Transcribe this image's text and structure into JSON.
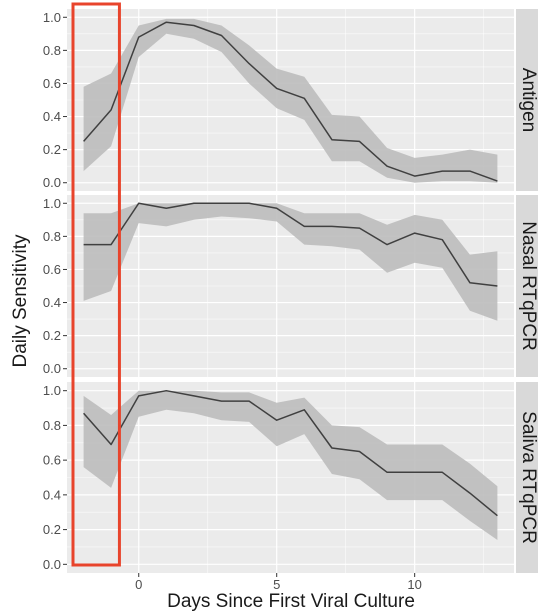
{
  "chart_data": {
    "type": "area",
    "xlabel": "Days Since First Viral Culture",
    "ylabel": "Daily Sensitivity",
    "x_ticks": [
      0,
      5,
      10
    ],
    "y_ticks": [
      "0.0",
      "0.2",
      "0.4",
      "0.6",
      "0.8",
      "1.0"
    ],
    "xlim": [
      -2.6,
      13.6
    ],
    "ylim": [
      -0.05,
      1.05
    ],
    "grid": true,
    "highlight": {
      "x_from": -2.6,
      "x_to": -0.7,
      "color": "#e8442c"
    },
    "colors": {
      "panel_bg": "#ebebeb",
      "strip_bg": "#d9d9d9",
      "band": "#bdbdbd",
      "line": "#404040",
      "gridline": "#ffffff"
    },
    "x": [
      -2,
      -1,
      0,
      1,
      2,
      3,
      4,
      5,
      6,
      7,
      8,
      9,
      10,
      11,
      12,
      13
    ],
    "panels": [
      {
        "strip_label": "Antigen",
        "values": [
          0.25,
          0.44,
          0.88,
          0.97,
          0.95,
          0.89,
          0.72,
          0.57,
          0.51,
          0.26,
          0.25,
          0.1,
          0.04,
          0.07,
          0.07,
          0.01
        ],
        "lower": [
          0.07,
          0.22,
          0.76,
          0.9,
          0.87,
          0.79,
          0.6,
          0.45,
          0.38,
          0.13,
          0.13,
          0.03,
          0.0,
          0.01,
          0.01,
          0.0
        ],
        "upper": [
          0.58,
          0.66,
          0.95,
          0.99,
          0.99,
          0.95,
          0.83,
          0.69,
          0.64,
          0.41,
          0.4,
          0.21,
          0.15,
          0.17,
          0.2,
          0.17
        ]
      },
      {
        "strip_label": "Nasal RTqPCR",
        "values": [
          0.75,
          0.75,
          1.0,
          0.97,
          1.0,
          1.0,
          1.0,
          0.97,
          0.86,
          0.86,
          0.85,
          0.75,
          0.82,
          0.78,
          0.52,
          0.5
        ],
        "lower": [
          0.41,
          0.47,
          0.88,
          0.86,
          0.9,
          0.92,
          0.91,
          0.89,
          0.75,
          0.74,
          0.72,
          0.58,
          0.64,
          0.61,
          0.35,
          0.29
        ],
        "upper": [
          0.94,
          0.94,
          1.0,
          1.0,
          1.0,
          1.0,
          1.0,
          1.0,
          0.94,
          0.94,
          0.94,
          0.87,
          0.93,
          0.9,
          0.69,
          0.71
        ]
      },
      {
        "strip_label": "Saliva RTqPCR",
        "values": [
          0.87,
          0.69,
          0.97,
          1.0,
          0.97,
          0.94,
          0.94,
          0.83,
          0.89,
          0.67,
          0.65,
          0.53,
          0.53,
          0.53,
          0.41,
          0.28
        ],
        "lower": [
          0.56,
          0.44,
          0.85,
          0.89,
          0.87,
          0.83,
          0.82,
          0.68,
          0.75,
          0.52,
          0.49,
          0.37,
          0.37,
          0.37,
          0.25,
          0.14
        ],
        "upper": [
          0.97,
          0.86,
          1.0,
          1.0,
          1.0,
          0.99,
          0.99,
          0.93,
          0.96,
          0.8,
          0.79,
          0.69,
          0.69,
          0.69,
          0.58,
          0.45
        ]
      }
    ]
  }
}
